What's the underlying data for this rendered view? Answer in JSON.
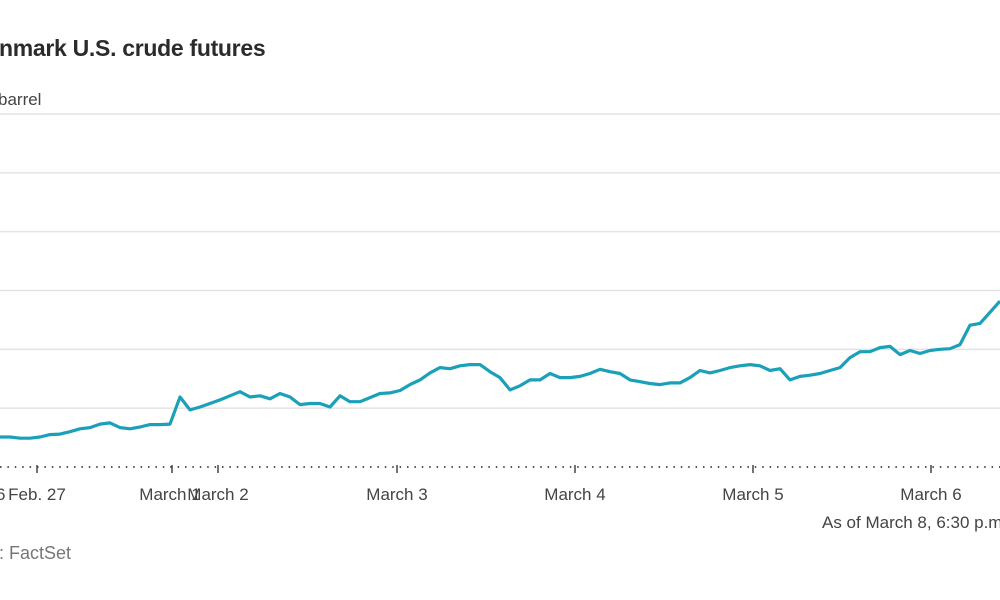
{
  "chart_data": {
    "type": "line",
    "title": "nmark U.S. crude futures",
    "subtitle": "barrel",
    "ylim": [
      0,
      6
    ],
    "grid": true,
    "x_tick_labels": [
      "6",
      "Feb. 27",
      "March 1",
      "March 2",
      "March 3",
      "March 4",
      "March 5",
      "March 6"
    ],
    "series": [
      {
        "color": "#1aa0b9",
        "values": [
          0.51,
          0.51,
          0.49,
          0.49,
          0.51,
          0.55,
          0.56,
          0.6,
          0.65,
          0.67,
          0.73,
          0.75,
          0.67,
          0.65,
          0.68,
          0.72,
          0.72,
          0.73,
          1.19,
          0.97,
          1.02,
          1.08,
          1.14,
          1.21,
          1.28,
          1.19,
          1.21,
          1.16,
          1.25,
          1.19,
          1.06,
          1.08,
          1.08,
          1.02,
          1.21,
          1.11,
          1.11,
          1.18,
          1.25,
          1.26,
          1.3,
          1.4,
          1.48,
          1.6,
          1.69,
          1.67,
          1.72,
          1.74,
          1.74,
          1.62,
          1.52,
          1.31,
          1.38,
          1.48,
          1.48,
          1.59,
          1.52,
          1.52,
          1.54,
          1.59,
          1.66,
          1.62,
          1.59,
          1.48,
          1.45,
          1.42,
          1.4,
          1.43,
          1.43,
          1.52,
          1.64,
          1.6,
          1.64,
          1.69,
          1.72,
          1.74,
          1.72,
          1.64,
          1.67,
          1.48,
          1.54,
          1.56,
          1.59,
          1.64,
          1.69,
          1.86,
          1.96,
          1.96,
          2.03,
          2.05,
          1.91,
          1.98,
          1.93,
          1.98,
          2.0,
          2.01,
          2.08,
          2.41,
          2.44,
          2.63,
          2.82
        ]
      }
    ],
    "note": "As of March 8, 6:30 p.m",
    "source": ": FactSet"
  }
}
